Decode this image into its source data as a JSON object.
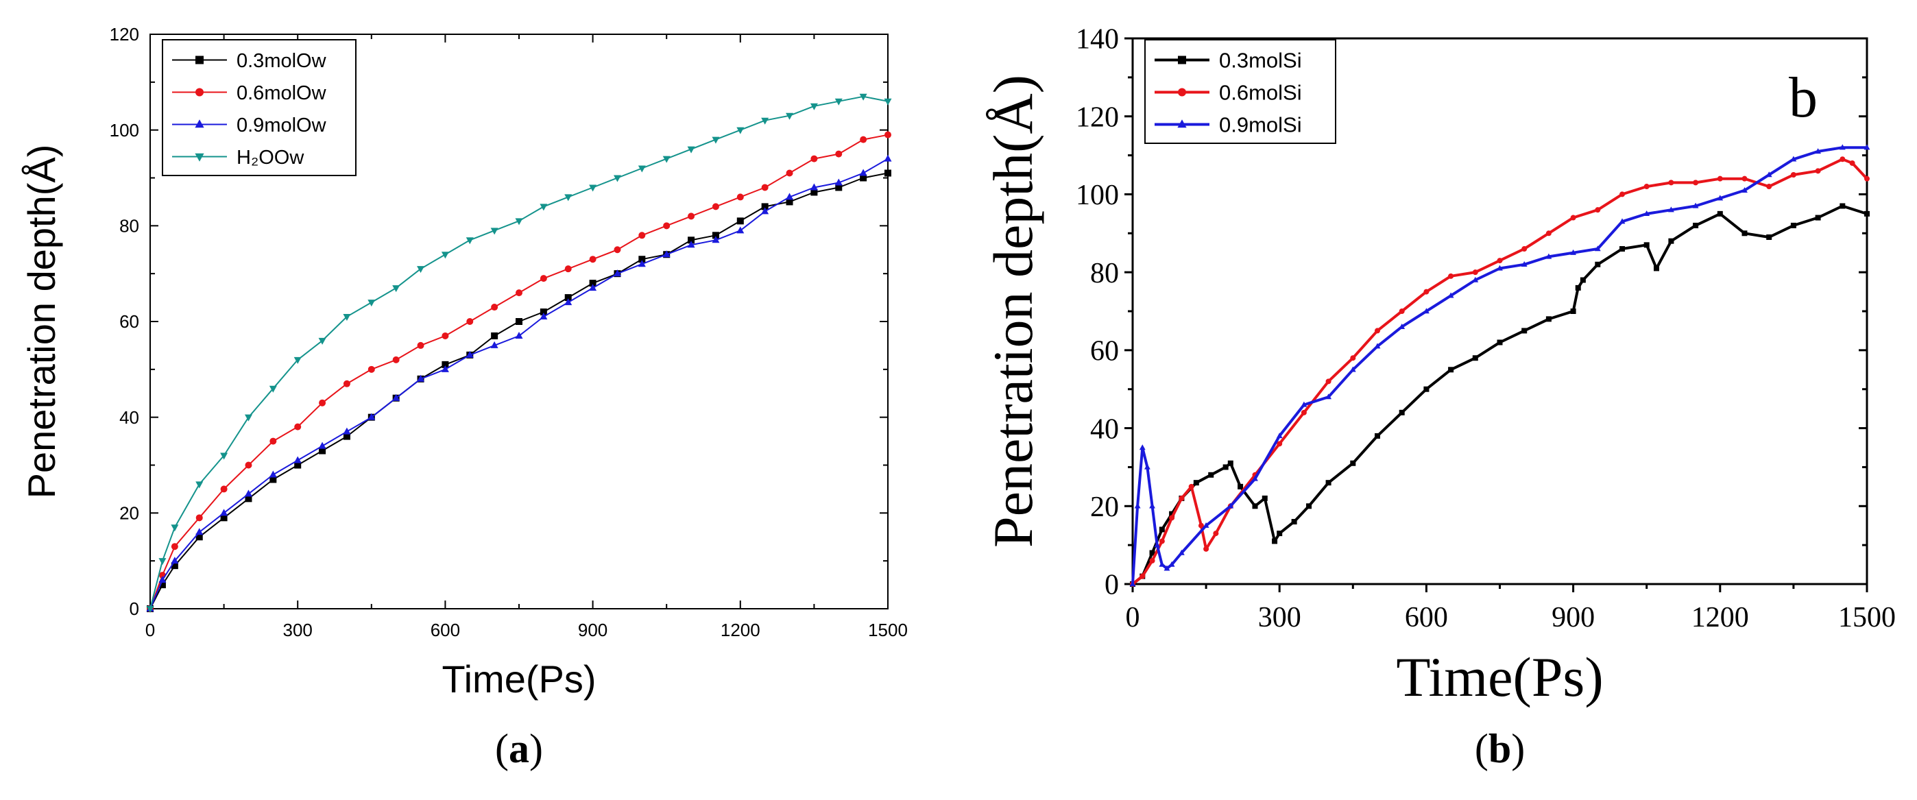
{
  "chart_data": [
    {
      "type": "line",
      "panel": "a",
      "caption_letter": "a",
      "inner_label": "",
      "xlabel": "Time(Ps)",
      "ylabel": "Penetration depth(Å)",
      "xlim": [
        0,
        1500
      ],
      "ylim": [
        0,
        120
      ],
      "xticks": [
        0,
        300,
        600,
        900,
        1200,
        1500
      ],
      "yticks": [
        0,
        20,
        40,
        60,
        80,
        100,
        120
      ],
      "grid": false,
      "legend_position": "top-left",
      "series": [
        {
          "name": "0.3molOw",
          "color": "#000000",
          "marker": "square",
          "x": [
            0,
            25,
            50,
            100,
            150,
            200,
            250,
            300,
            350,
            400,
            450,
            500,
            550,
            600,
            650,
            700,
            750,
            800,
            850,
            900,
            950,
            1000,
            1050,
            1100,
            1150,
            1200,
            1250,
            1300,
            1350,
            1400,
            1450,
            1500
          ],
          "y": [
            0,
            5,
            9,
            15,
            19,
            23,
            27,
            30,
            33,
            36,
            40,
            44,
            48,
            51,
            53,
            57,
            60,
            62,
            65,
            68,
            70,
            73,
            74,
            77,
            78,
            81,
            84,
            85,
            87,
            88,
            90,
            91
          ]
        },
        {
          "name": "0.6molOw",
          "color": "#e8141a",
          "marker": "circle",
          "x": [
            0,
            25,
            50,
            100,
            150,
            200,
            250,
            300,
            350,
            400,
            450,
            500,
            550,
            600,
            650,
            700,
            750,
            800,
            850,
            900,
            950,
            1000,
            1050,
            1100,
            1150,
            1200,
            1250,
            1300,
            1350,
            1400,
            1450,
            1500
          ],
          "y": [
            0,
            7,
            13,
            19,
            25,
            30,
            35,
            38,
            43,
            47,
            50,
            52,
            55,
            57,
            60,
            63,
            66,
            69,
            71,
            73,
            75,
            78,
            80,
            82,
            84,
            86,
            88,
            91,
            94,
            95,
            98,
            99
          ]
        },
        {
          "name": "0.9molOw",
          "color": "#1a1adc",
          "marker": "triangle-up",
          "x": [
            0,
            25,
            50,
            100,
            150,
            200,
            250,
            300,
            350,
            400,
            450,
            500,
            550,
            600,
            650,
            700,
            750,
            800,
            850,
            900,
            950,
            1000,
            1050,
            1100,
            1150,
            1200,
            1250,
            1300,
            1350,
            1400,
            1450,
            1500
          ],
          "y": [
            0,
            6,
            10,
            16,
            20,
            24,
            28,
            31,
            34,
            37,
            40,
            44,
            48,
            50,
            53,
            55,
            57,
            61,
            64,
            67,
            70,
            72,
            74,
            76,
            77,
            79,
            83,
            86,
            88,
            89,
            91,
            94
          ]
        },
        {
          "name": "H₂OOw",
          "color": "#14938c",
          "marker": "triangle-down",
          "x": [
            0,
            25,
            50,
            100,
            150,
            200,
            250,
            300,
            350,
            400,
            450,
            500,
            550,
            600,
            650,
            700,
            750,
            800,
            850,
            900,
            950,
            1000,
            1050,
            1100,
            1150,
            1200,
            1250,
            1300,
            1350,
            1400,
            1450,
            1500
          ],
          "y": [
            0,
            10,
            17,
            26,
            32,
            40,
            46,
            52,
            56,
            61,
            64,
            67,
            71,
            74,
            77,
            79,
            81,
            84,
            86,
            88,
            90,
            92,
            94,
            96,
            98,
            100,
            102,
            103,
            105,
            106,
            107,
            106
          ]
        }
      ]
    },
    {
      "type": "line",
      "panel": "b",
      "caption_letter": "b",
      "inner_label": "b",
      "xlabel": "Time(Ps)",
      "ylabel": "Penetration depth(Å)",
      "xlim": [
        0,
        1500
      ],
      "ylim": [
        0,
        140
      ],
      "xticks": [
        0,
        300,
        600,
        900,
        1200,
        1500
      ],
      "yticks": [
        0,
        20,
        40,
        60,
        80,
        100,
        120,
        140
      ],
      "grid": false,
      "legend_position": "top-left",
      "series": [
        {
          "name": "0.3molSi",
          "color": "#000000",
          "marker": "square",
          "x": [
            0,
            20,
            40,
            60,
            80,
            100,
            130,
            160,
            190,
            200,
            220,
            250,
            270,
            290,
            300,
            330,
            360,
            400,
            450,
            500,
            550,
            600,
            650,
            700,
            750,
            800,
            850,
            900,
            910,
            920,
            950,
            1000,
            1050,
            1070,
            1100,
            1150,
            1200,
            1250,
            1300,
            1350,
            1400,
            1450,
            1500
          ],
          "y": [
            0,
            2,
            8,
            14,
            18,
            22,
            26,
            28,
            30,
            31,
            25,
            20,
            22,
            11,
            13,
            16,
            20,
            26,
            31,
            38,
            44,
            50,
            55,
            58,
            62,
            65,
            68,
            70,
            76,
            78,
            82,
            86,
            87,
            81,
            88,
            92,
            95,
            90,
            89,
            92,
            94,
            97,
            95
          ]
        },
        {
          "name": "0.6molSi",
          "color": "#e8141a",
          "marker": "circle",
          "x": [
            0,
            20,
            40,
            60,
            80,
            100,
            120,
            140,
            150,
            170,
            200,
            250,
            300,
            350,
            400,
            450,
            500,
            550,
            600,
            650,
            700,
            750,
            800,
            850,
            900,
            950,
            1000,
            1050,
            1100,
            1150,
            1200,
            1250,
            1300,
            1350,
            1400,
            1450,
            1470,
            1500
          ],
          "y": [
            0,
            2,
            6,
            11,
            17,
            22,
            25,
            15,
            9,
            13,
            20,
            28,
            36,
            44,
            52,
            58,
            65,
            70,
            75,
            79,
            80,
            83,
            86,
            90,
            94,
            96,
            100,
            102,
            103,
            103,
            104,
            104,
            102,
            105,
            106,
            109,
            108,
            104
          ]
        },
        {
          "name": "0.9molSi",
          "color": "#1a1adc",
          "marker": "triangle-up",
          "x": [
            0,
            10,
            20,
            30,
            40,
            50,
            60,
            70,
            80,
            100,
            150,
            200,
            250,
            300,
            350,
            400,
            450,
            500,
            550,
            600,
            650,
            700,
            750,
            800,
            850,
            900,
            950,
            1000,
            1050,
            1100,
            1150,
            1200,
            1250,
            1300,
            1350,
            1400,
            1450,
            1500
          ],
          "y": [
            0,
            20,
            35,
            30,
            20,
            10,
            5,
            4,
            5,
            8,
            15,
            20,
            27,
            38,
            46,
            48,
            55,
            61,
            66,
            70,
            74,
            78,
            81,
            82,
            84,
            85,
            86,
            93,
            95,
            96,
            97,
            99,
            101,
            105,
            109,
            111,
            112,
            112
          ]
        }
      ]
    }
  ]
}
